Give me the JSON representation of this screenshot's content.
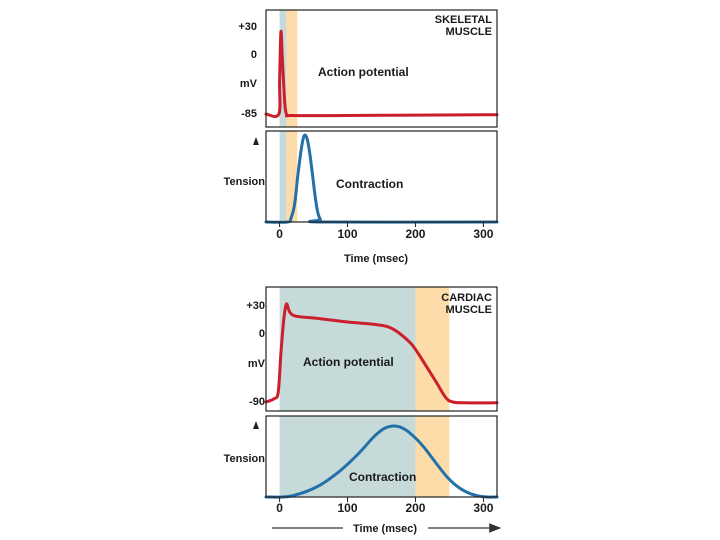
{
  "chart_data": [
    {
      "type": "line",
      "title": "SKELETAL MUSCLE",
      "title_lines": [
        "SKELETAL",
        "MUSCLE"
      ],
      "colors": {
        "absolute_refractory": "#c6dada",
        "relative_refractory": "#fddcaa"
      },
      "x_ticks": [
        "0",
        "100",
        "200",
        "300"
      ],
      "xlim": [
        -20,
        320
      ],
      "xlabel": "Time (msec)",
      "action_potential": {
        "label": "Action potential",
        "ylabel": "mV",
        "y_ticks": [
          "+30",
          "0",
          "-85"
        ],
        "ylim": [
          -95,
          40
        ],
        "color": "#cc1f2e",
        "refractory_absolute_ms": [
          0,
          10
        ],
        "refractory_relative_ms": [
          10,
          26
        ],
        "x": [
          -20,
          -1,
          0,
          2,
          4,
          7,
          10,
          20,
          100,
          200,
          300,
          320
        ],
        "y": [
          -85,
          -85,
          -40,
          25,
          -10,
          -60,
          -85,
          -87,
          -87,
          -86.5,
          -86,
          -86
        ]
      },
      "contraction": {
        "label": "Contraction",
        "ylabel": "Tension",
        "color": "#2470a8",
        "x": [
          -20,
          12,
          17,
          22,
          27,
          32,
          36,
          40,
          44,
          48,
          52,
          56,
          60,
          64,
          320
        ],
        "y": [
          0,
          0,
          0.05,
          0.2,
          0.55,
          0.85,
          1.0,
          0.98,
          0.82,
          0.58,
          0.32,
          0.12,
          0.03,
          0,
          0
        ]
      }
    },
    {
      "type": "line",
      "title": "CARDIAC MUSCLE",
      "title_lines": [
        "CARDIAC",
        "MUSCLE"
      ],
      "x_ticks": [
        "0",
        "100",
        "200",
        "300"
      ],
      "xlim": [
        -20,
        320
      ],
      "xlabel": "Time (msec)",
      "action_potential": {
        "label": "Action potential",
        "ylabel": "mV",
        "y_ticks": [
          "+30",
          "0",
          "-90"
        ],
        "ylim": [
          -100,
          40
        ],
        "color": "#cc1f2e",
        "refractory_absolute_ms": [
          0,
          200
        ],
        "refractory_relative_ms": [
          200,
          250
        ],
        "x": [
          -20,
          -8,
          -2,
          2,
          6,
          10,
          15,
          25,
          60,
          100,
          140,
          160,
          175,
          195,
          215,
          230,
          245,
          255,
          270,
          320
        ],
        "y": [
          -90,
          -86,
          -78,
          -30,
          10,
          30,
          20,
          15,
          12,
          8,
          5,
          2,
          -5,
          -20,
          -45,
          -65,
          -85,
          -90,
          -91,
          -91
        ]
      },
      "contraction": {
        "label": "Contraction",
        "ylabel": "Tension",
        "color": "#2470a8",
        "x": [
          -20,
          5,
          20,
          40,
          60,
          80,
          100,
          120,
          140,
          155,
          170,
          185,
          200,
          215,
          230,
          245,
          260,
          275,
          290,
          305,
          320
        ],
        "y": [
          0,
          0,
          0.02,
          0.08,
          0.17,
          0.3,
          0.46,
          0.65,
          0.86,
          0.97,
          1.0,
          0.95,
          0.83,
          0.67,
          0.48,
          0.3,
          0.16,
          0.07,
          0.02,
          0,
          0
        ]
      },
      "time_arrow": true
    }
  ]
}
